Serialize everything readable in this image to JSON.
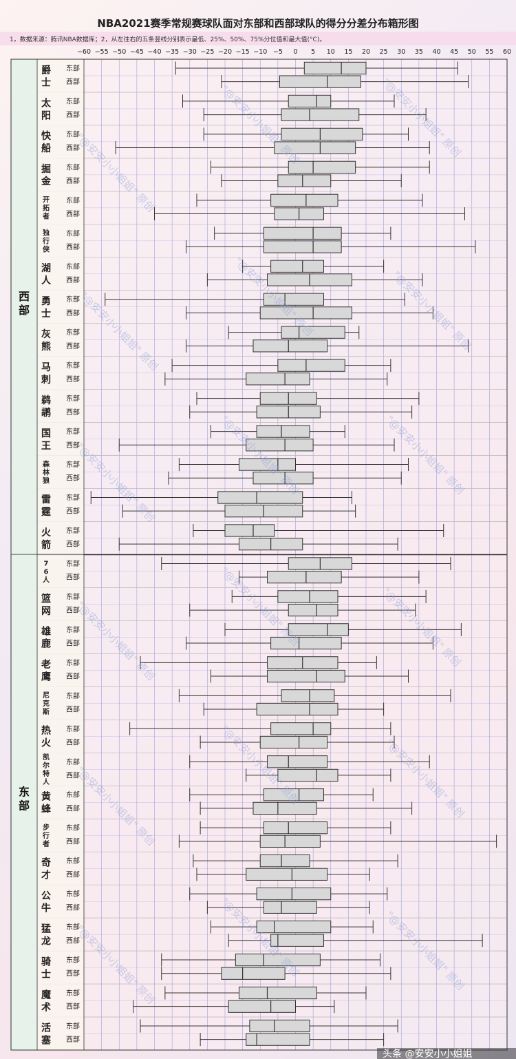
{
  "chart_data": {
    "type": "boxplot",
    "title": "NBA2021赛季常规赛球队面对东部和西部球队的得分分差分布箱形图",
    "note": "1，数据来源：腾讯NBA数据库；2，从左往右的五条竖线分别表示最低、25%、50%、75%分位值和最大值(°C)。",
    "x_ticks": [
      -60,
      -55,
      -50,
      -45,
      -40,
      -35,
      -30,
      -25,
      -20,
      -15,
      -10,
      -5,
      0,
      5,
      10,
      15,
      20,
      25,
      30,
      35,
      40,
      45,
      50,
      55,
      60
    ],
    "xlim": [
      -60,
      60
    ],
    "grid": true,
    "series_labels": [
      "东部",
      "西部"
    ],
    "groups": [
      {
        "name": "西部",
        "teams": [
          {
            "name": "爵士",
            "boxes": [
              [
                -34,
                2.5,
                13,
                20,
                46
              ],
              [
                -21,
                -4.5,
                9,
                18.5,
                49
              ]
            ]
          },
          {
            "name": "太阳",
            "boxes": [
              [
                -32,
                -2,
                6,
                10,
                28
              ],
              [
                -26,
                -4,
                4,
                18,
                37
              ]
            ]
          },
          {
            "name": "快船",
            "boxes": [
              [
                -26,
                -4,
                7,
                19,
                32
              ],
              [
                -51,
                -6,
                7,
                17,
                38
              ]
            ]
          },
          {
            "name": "掘金",
            "boxes": [
              [
                -24,
                -2,
                5,
                17,
                38
              ],
              [
                -21,
                -5,
                2,
                10,
                30
              ]
            ]
          },
          {
            "name": "开拓者",
            "boxes": [
              [
                -28,
                -7,
                3,
                12,
                36
              ],
              [
                -40,
                -6,
                1,
                8,
                48
              ]
            ]
          },
          {
            "name": "独行侠",
            "boxes": [
              [
                -23,
                -9,
                5,
                13,
                27
              ],
              [
                -31,
                -9,
                5,
                13,
                51
              ]
            ]
          },
          {
            "name": "湖人",
            "boxes": [
              [
                -15,
                -7,
                2,
                8,
                25
              ],
              [
                -25,
                -8,
                4,
                16,
                36
              ]
            ]
          },
          {
            "name": "勇士",
            "boxes": [
              [
                -54,
                -9,
                -3,
                8,
                31
              ],
              [
                -31,
                -10,
                5,
                16,
                39
              ]
            ]
          },
          {
            "name": "灰熊",
            "boxes": [
              [
                -19,
                -4,
                1,
                14,
                18
              ],
              [
                -31,
                -12,
                -2,
                9,
                49
              ]
            ]
          },
          {
            "name": "马刺",
            "boxes": [
              [
                -35,
                -5,
                3,
                14,
                27
              ],
              [
                -37,
                -14,
                -3,
                4,
                26
              ]
            ]
          },
          {
            "name": "鹈鹕",
            "boxes": [
              [
                -28,
                -10,
                -2,
                6,
                35
              ],
              [
                -30,
                -11,
                -2,
                7,
                33
              ]
            ]
          },
          {
            "name": "国王",
            "boxes": [
              [
                -24,
                -11,
                -4,
                4,
                14
              ],
              [
                -50,
                -14,
                -3,
                5,
                28
              ]
            ]
          },
          {
            "name": "森林狼",
            "boxes": [
              [
                -33,
                -16,
                -5,
                0,
                32
              ],
              [
                -36,
                -12,
                -3,
                5,
                30
              ]
            ]
          },
          {
            "name": "雷霆",
            "boxes": [
              [
                -58,
                -22,
                -11,
                2,
                16
              ],
              [
                -49,
                -20,
                -9,
                2,
                17
              ]
            ]
          },
          {
            "name": "火箭",
            "boxes": [
              [
                -29,
                -20,
                -12,
                -6,
                42
              ],
              [
                -50,
                -16,
                -7,
                2,
                29
              ]
            ]
          }
        ]
      },
      {
        "name": "东部",
        "teams": [
          {
            "name": "76人",
            "boxes": [
              [
                -38,
                -2,
                7,
                16,
                44
              ],
              [
                -16,
                -8,
                3,
                13,
                35
              ]
            ]
          },
          {
            "name": "篮网",
            "boxes": [
              [
                -18,
                -5,
                4,
                12,
                37
              ],
              [
                -30,
                -2,
                6,
                12,
                34
              ]
            ]
          },
          {
            "name": "雄鹿",
            "boxes": [
              [
                -20,
                -2,
                9,
                15,
                47
              ],
              [
                -31,
                -7,
                1,
                13,
                39
              ]
            ]
          },
          {
            "name": "老鹰",
            "boxes": [
              [
                -44,
                -8,
                2,
                12,
                23
              ],
              [
                -24,
                -8,
                6,
                14,
                32
              ]
            ]
          },
          {
            "name": "尼克斯",
            "boxes": [
              [
                -33,
                -4,
                4,
                11,
                44
              ],
              [
                -26,
                -11,
                4,
                12,
                25
              ]
            ]
          },
          {
            "name": "热火",
            "boxes": [
              [
                -47,
                -7,
                5,
                10,
                27
              ],
              [
                -27,
                -10,
                1,
                9,
                28
              ]
            ]
          },
          {
            "name": "凯尔特人",
            "boxes": [
              [
                -30,
                -8,
                -2,
                9,
                38
              ],
              [
                -14,
                -5,
                6,
                12,
                27
              ]
            ]
          },
          {
            "name": "黄蜂",
            "boxes": [
              [
                -30,
                -9,
                1,
                8,
                22
              ],
              [
                -27,
                -12,
                -5,
                6,
                33
              ]
            ]
          },
          {
            "name": "步行者",
            "boxes": [
              [
                -27,
                -9,
                -2,
                9,
                27
              ],
              [
                -33,
                -10,
                -3,
                7,
                57
              ]
            ]
          },
          {
            "name": "奇才",
            "boxes": [
              [
                -29,
                -10,
                -4,
                4,
                29
              ],
              [
                -28,
                -14,
                -1,
                9,
                21
              ]
            ]
          },
          {
            "name": "公牛",
            "boxes": [
              [
                -30,
                -11,
                -1,
                10,
                26
              ],
              [
                -25,
                -9,
                -4,
                6,
                21
              ]
            ]
          },
          {
            "name": "猛龙",
            "boxes": [
              [
                -24,
                -11,
                -6,
                10,
                22
              ],
              [
                -19,
                -7,
                -5,
                8,
                53
              ]
            ]
          },
          {
            "name": "骑士",
            "boxes": [
              [
                -38,
                -17,
                -9,
                7,
                24
              ],
              [
                -38,
                -21,
                -15,
                -3,
                27
              ]
            ]
          },
          {
            "name": "魔术",
            "boxes": [
              [
                -37,
                -16,
                -8,
                6,
                20
              ],
              [
                -46,
                -19,
                -7,
                0,
                11
              ]
            ]
          },
          {
            "name": "活塞",
            "boxes": [
              [
                -44,
                -13,
                -6,
                4,
                29
              ],
              [
                -27,
                -14,
                -11,
                4,
                25
              ]
            ]
          }
        ]
      }
    ]
  },
  "watermark": "\"@安安小小姐姐\" 原创",
  "credit": "头条 @安安小小姐姐",
  "colors": {
    "box_fill": "#d8d8d8",
    "line": "#333333",
    "grid": "#8a8ed8",
    "group_bg": "#e6f2ea"
  }
}
